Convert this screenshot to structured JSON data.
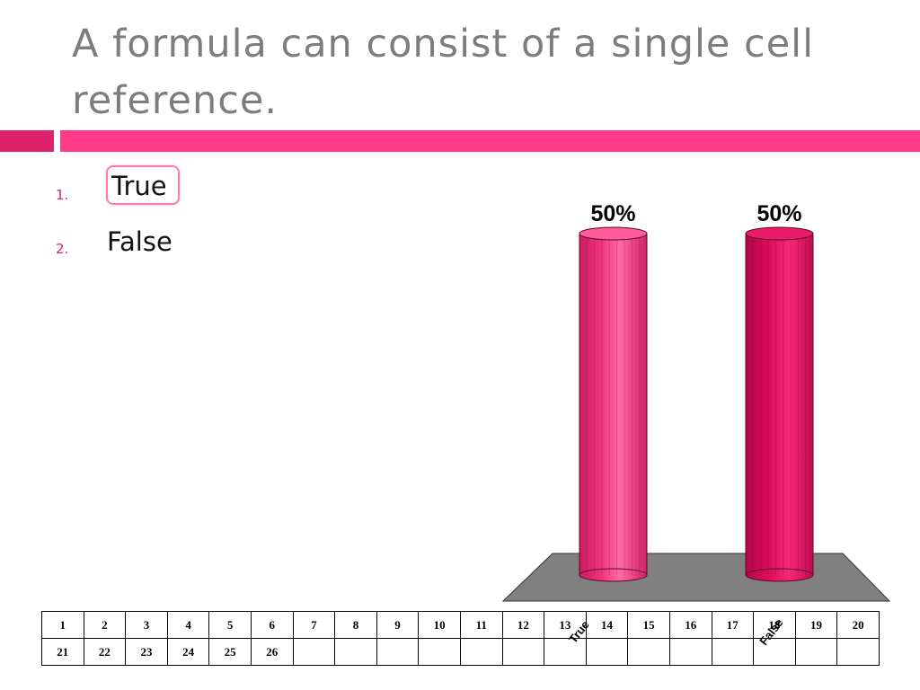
{
  "slide": {
    "title": "A formula can consist of a single cell reference."
  },
  "answers": [
    {
      "number": "1.",
      "label": "True",
      "selected": true
    },
    {
      "number": "2.",
      "label": "False",
      "selected": false
    }
  ],
  "colors": {
    "accent": "#ff3a88",
    "accent_dark": "#e0226a",
    "bar_true": "#f0307e",
    "bar_false": "#dd0d5c",
    "floor": "#808080"
  },
  "chart_data": {
    "type": "bar",
    "categories": [
      "True",
      "False"
    ],
    "values": [
      50,
      50
    ],
    "value_labels": [
      "50%",
      "50%"
    ],
    "ylim": [
      0,
      100
    ],
    "grid": false
  },
  "keypad": {
    "rows": [
      [
        "1",
        "2",
        "3",
        "4",
        "5",
        "6",
        "7",
        "8",
        "9",
        "10",
        "11",
        "12",
        "13",
        "14",
        "15",
        "16",
        "17",
        "18",
        "19",
        "20"
      ],
      [
        "21",
        "22",
        "23",
        "24",
        "25",
        "26",
        "",
        "",
        "",
        "",
        "",
        "",
        "",
        "",
        "",
        "",
        "",
        "",
        "",
        ""
      ]
    ]
  }
}
